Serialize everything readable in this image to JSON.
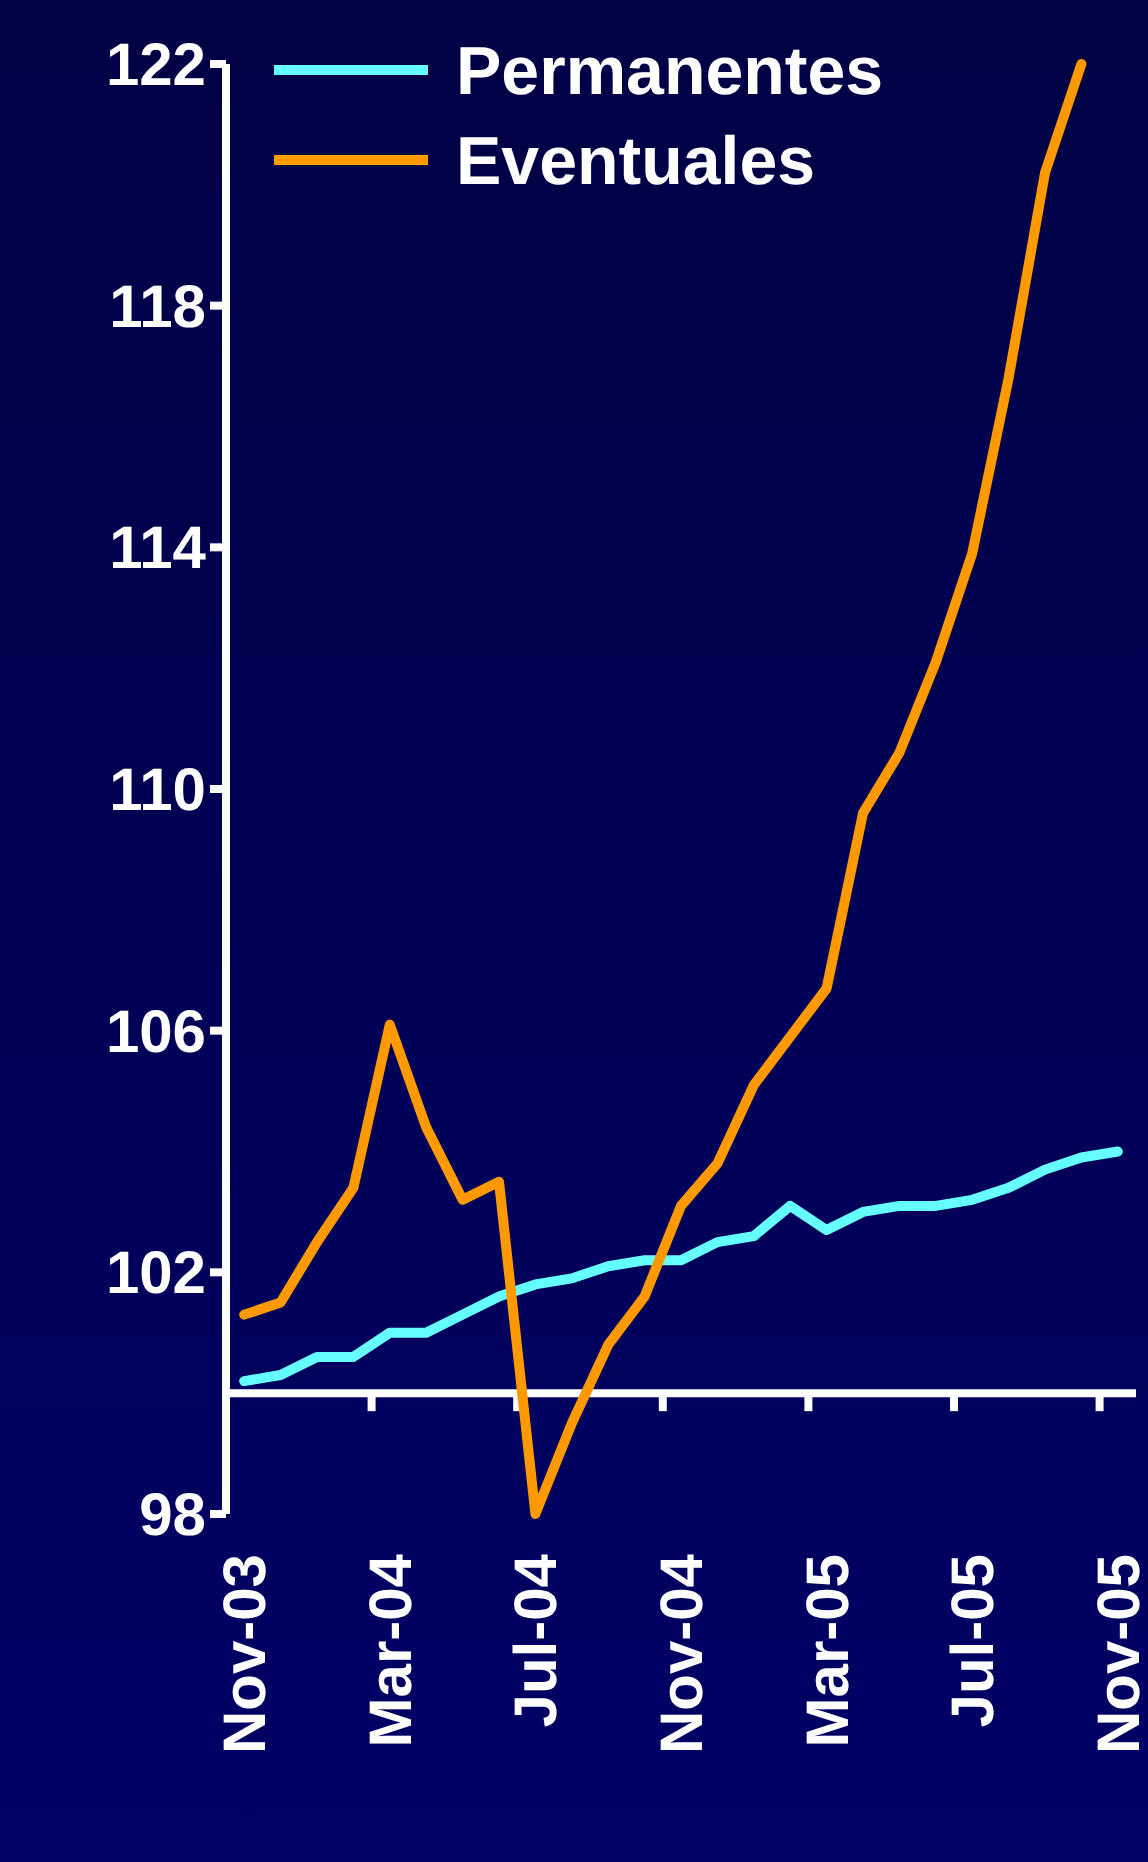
{
  "chart_data": {
    "type": "line",
    "categories": [
      "Nov-03",
      null,
      null,
      null,
      "Mar-04",
      null,
      null,
      null,
      "Jul-04",
      null,
      null,
      null,
      "Nov-04",
      null,
      null,
      null,
      "Mar-05",
      null,
      null,
      null,
      "Jul-05",
      null,
      null,
      null,
      "Nov-05"
    ],
    "series": [
      {
        "name": "Permanentes",
        "color": "#66ffff",
        "values": [
          100.2,
          100.3,
          100.6,
          100.6,
          101.0,
          101.0,
          101.3,
          101.6,
          101.8,
          101.9,
          102.1,
          102.2,
          102.2,
          102.5,
          102.6,
          103.1,
          102.7,
          103.0,
          103.1,
          103.1,
          103.2,
          103.4,
          103.7,
          103.9,
          104.0
        ]
      },
      {
        "name": "Eventuales",
        "color": "#ff9900",
        "values": [
          101.3,
          101.5,
          102.5,
          103.4,
          106.1,
          104.4,
          103.2,
          103.5,
          98.0,
          99.5,
          100.8,
          101.6,
          103.1,
          103.8,
          105.1,
          105.9,
          106.7,
          109.6,
          110.6,
          112.1,
          113.9,
          116.8,
          120.2,
          122.0,
          null
        ]
      }
    ],
    "ylim": [
      98,
      122
    ],
    "yticks": [
      98,
      102,
      106,
      110,
      114,
      118,
      122
    ],
    "ref_lines": [
      {
        "axis": "y",
        "value": 100,
        "color": "#ffffff"
      }
    ],
    "grid": false,
    "legend": "top",
    "marker": "none",
    "line_style": "solid"
  }
}
